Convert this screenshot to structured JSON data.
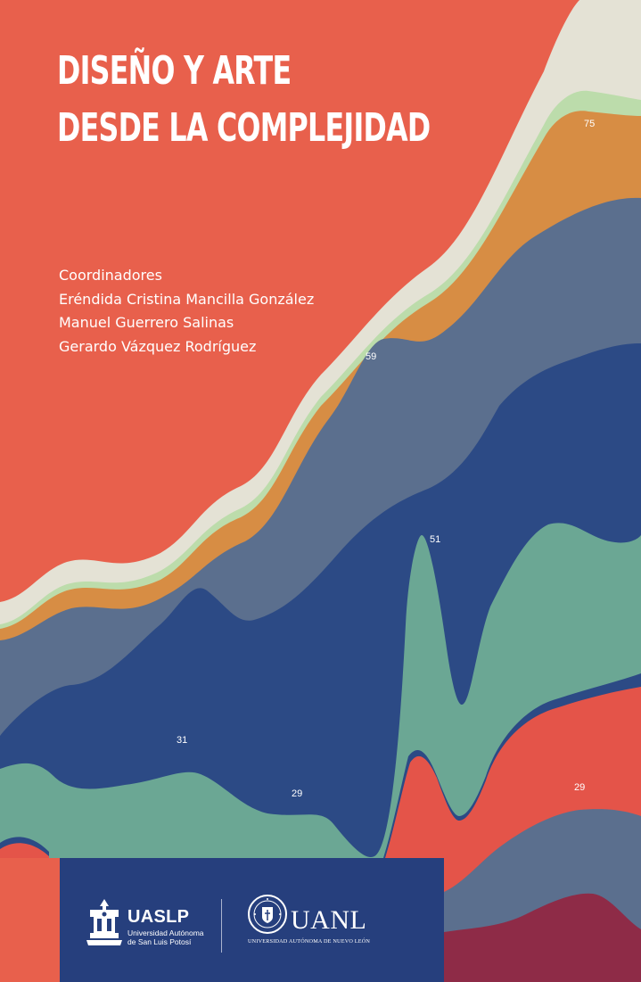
{
  "title": {
    "line1": "DISEÑO Y ARTE",
    "line2": "DESDE LA COMPLEJIDAD"
  },
  "credits": {
    "heading": "Coordinadores",
    "names": [
      "Eréndida Cristina Mancilla González",
      "Manuel Guerrero Salinas",
      "Gerardo Vázquez Rodríguez"
    ]
  },
  "stream_labels": [
    "75",
    "59",
    "51",
    "31",
    "29",
    "29"
  ],
  "footer": {
    "uaslp": {
      "acronym": "UASLP",
      "line1": "Universidad Autónoma",
      "line2": "de San Luis Potosí"
    },
    "uanl": {
      "acronym": "UANL",
      "full_name": "UNIVERSIDAD AUTÓNOMA DE NUEVO LEÓN",
      "seal_text": "UNIVERSIDAD AUTÓNOMA DE NUEVO LEÓN"
    }
  },
  "colors": {
    "background": "#e8604c",
    "cream": "#e4e2d5",
    "light_green": "#bcdcab",
    "orange": "#d78d44",
    "slate_blue": "#5b6f8e",
    "navy": "#2c4a85",
    "teal": "#6ba794",
    "red": "#e45449",
    "wine": "#8e2b47",
    "footer": "#263f7d"
  }
}
